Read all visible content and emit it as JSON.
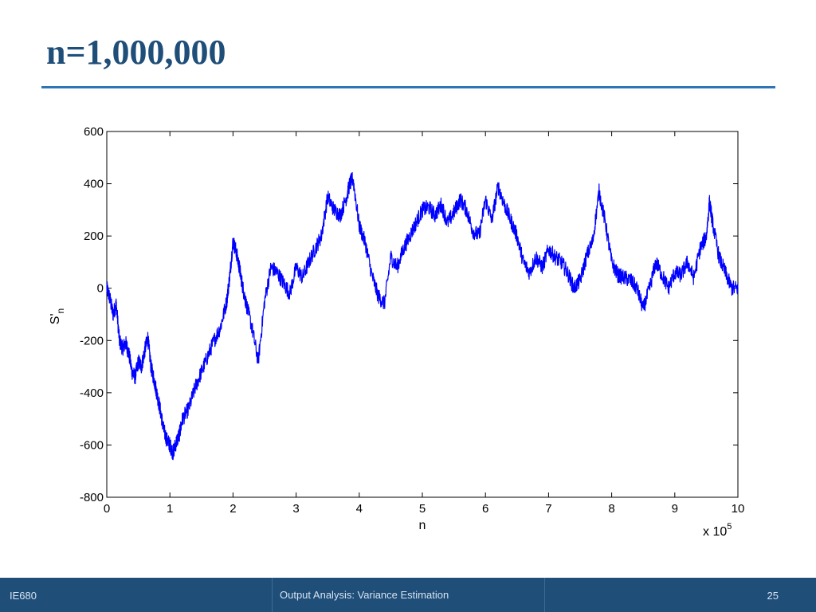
{
  "slide": {
    "title": "n=1,000,000"
  },
  "footer": {
    "left": "IE680",
    "center": "Output Analysis: Variance  Estimation",
    "page": "25"
  },
  "colors": {
    "title": "#1f4e79",
    "rule": "#2e75b6",
    "footer_bg": "#1f4e79",
    "series": "#0000ff"
  },
  "chart_data": {
    "type": "line",
    "xlabel": "n",
    "ylabel_main": "S'",
    "ylabel_subscript": "n",
    "x_multiplier_label": "x 10",
    "x_multiplier_exponent": "5",
    "xlim": [
      0,
      10
    ],
    "ylim": [
      -800,
      600
    ],
    "x_ticks": [
      "0",
      "1",
      "2",
      "3",
      "4",
      "5",
      "6",
      "7",
      "8",
      "9",
      "10"
    ],
    "y_ticks": [
      "600",
      "400",
      "200",
      "0",
      "-200",
      "-400",
      "-600",
      "-800"
    ],
    "grid": false,
    "series": [
      {
        "x": [
          0,
          0.05,
          0.1,
          0.15,
          0.2,
          0.25,
          0.3,
          0.35,
          0.4,
          0.45,
          0.5,
          0.55,
          0.6,
          0.65,
          0.7,
          0.75,
          0.8,
          0.85,
          0.9,
          0.95,
          1.0,
          1.05,
          1.1,
          1.15,
          1.2,
          1.3,
          1.4,
          1.5,
          1.6,
          1.7,
          1.8,
          1.9,
          1.95,
          2.0,
          2.05,
          2.1,
          2.15,
          2.2,
          2.3,
          2.4,
          2.5,
          2.6,
          2.7,
          2.8,
          2.9,
          3.0,
          3.1,
          3.2,
          3.3,
          3.4,
          3.5,
          3.6,
          3.7,
          3.8,
          3.85,
          3.9,
          4.0,
          4.1,
          4.2,
          4.3,
          4.4,
          4.5,
          4.6,
          4.7,
          4.8,
          4.9,
          5.0,
          5.1,
          5.2,
          5.3,
          5.4,
          5.5,
          5.6,
          5.7,
          5.8,
          5.9,
          6.0,
          6.1,
          6.2,
          6.3,
          6.4,
          6.5,
          6.6,
          6.7,
          6.8,
          6.9,
          7.0,
          7.1,
          7.2,
          7.3,
          7.4,
          7.5,
          7.6,
          7.7,
          7.8,
          7.9,
          8.0,
          8.1,
          8.2,
          8.3,
          8.4,
          8.5,
          8.6,
          8.7,
          8.8,
          8.9,
          9.0,
          9.1,
          9.2,
          9.3,
          9.4,
          9.5,
          9.55,
          9.6,
          9.7,
          9.8,
          9.9,
          10.0
        ],
        "y": [
          0,
          -40,
          -100,
          -60,
          -200,
          -230,
          -210,
          -250,
          -320,
          -340,
          -280,
          -300,
          -240,
          -190,
          -300,
          -350,
          -410,
          -470,
          -540,
          -580,
          -600,
          -630,
          -590,
          -560,
          -500,
          -460,
          -380,
          -320,
          -260,
          -200,
          -150,
          -50,
          50,
          180,
          140,
          80,
          10,
          -50,
          -150,
          -280,
          -50,
          80,
          60,
          20,
          -20,
          80,
          40,
          100,
          150,
          200,
          350,
          300,
          280,
          350,
          400,
          420,
          240,
          170,
          50,
          -30,
          -60,
          120,
          80,
          150,
          200,
          250,
          300,
          310,
          280,
          320,
          250,
          290,
          340,
          300,
          220,
          200,
          340,
          260,
          390,
          320,
          260,
          200,
          100,
          60,
          120,
          80,
          150,
          120,
          100,
          60,
          0,
          30,
          120,
          180,
          370,
          250,
          100,
          50,
          40,
          30,
          0,
          -80,
          0,
          100,
          50,
          0,
          60,
          50,
          100,
          40,
          150,
          200,
          330,
          250,
          120,
          60,
          0,
          0
        ]
      }
    ]
  }
}
